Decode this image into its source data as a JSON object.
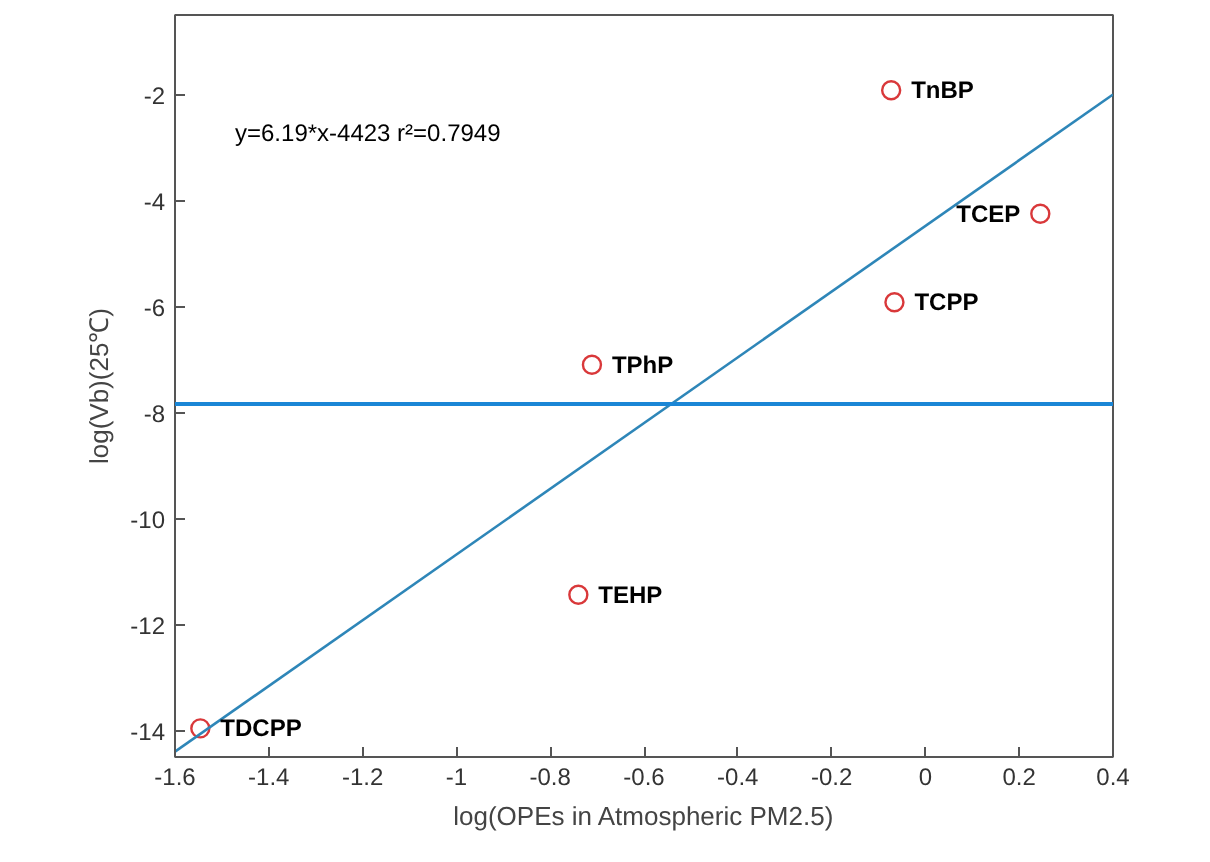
{
  "chart_data": {
    "type": "scatter",
    "xlabel": "log(OPEs in Atmospheric PM2.5)",
    "ylabel": "log(Vb)(25℃)",
    "xlim": [
      -1.6,
      0.4
    ],
    "ylim": [
      -14.5,
      -0.5
    ],
    "xticks": [
      -1.6,
      -1.4,
      -1.2,
      -1,
      -0.8,
      -0.6,
      -0.4,
      -0.2,
      0,
      0.2,
      0.4
    ],
    "yticks": [
      -14,
      -12,
      -10,
      -8,
      -6,
      -4,
      -2
    ],
    "grid": false,
    "series": [
      {
        "marker": "circle",
        "color": "#d9383a",
        "x": [
          -0.073,
          0.245,
          -0.066,
          -0.711,
          -0.74,
          -1.546
        ],
        "values": [
          -1.92,
          -4.25,
          -5.92,
          -7.1,
          -11.44,
          -13.96
        ]
      },
      {
        "type": "line",
        "color": "#2e86b8",
        "x": [
          -1.6,
          0.4
        ],
        "values": [
          -14.4,
          -2
        ]
      }
    ],
    "ref_lines": [
      {
        "axis": "y",
        "value": -7.84,
        "color": "#1a86d6"
      }
    ],
    "annotations": [
      "y=6.19*x-4423 r²=0.7949",
      {
        "text": "TnBP",
        "x": -0.073,
        "y": -1.92
      },
      {
        "text": "TCEP",
        "x": 0.245,
        "y": -4.25
      },
      {
        "text": "TCPP",
        "x": -0.066,
        "y": -5.92
      },
      {
        "text": "TPhP",
        "x": -0.711,
        "y": -7.1
      },
      {
        "text": "TEHP",
        "x": -0.74,
        "y": -11.44
      },
      {
        "text": "TDCPP",
        "x": -1.546,
        "y": -13.96
      }
    ]
  }
}
